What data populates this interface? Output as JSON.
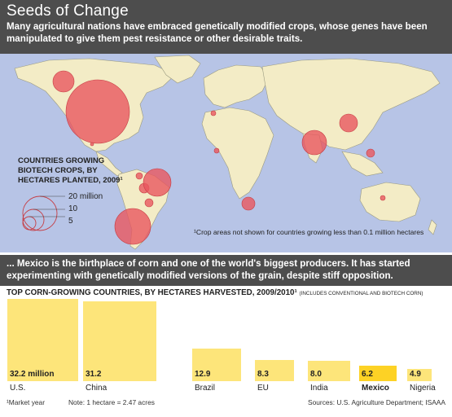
{
  "header": {
    "title": "Seeds of Change",
    "subtitle": "Many agricultural nations have embraced genetically modified crops, whose genes have been manipulated to give them pest resistance or other desirable traits."
  },
  "map": {
    "legend_title_lines": [
      "COUNTRIES GROWING",
      "BIOTECH CROPS, BY",
      "HECTARES PLANTED, 2009¹"
    ],
    "legend_values": [
      "20 million",
      "10",
      "5"
    ],
    "note": "¹Crop areas not shown for countries growing less than 0.1 million hectares",
    "colors": {
      "ocean": "#b7c4e6",
      "land": "#f3ecc6",
      "bubble": "#e8585f"
    }
  },
  "section2": {
    "text": "... Mexico is the birthplace of corn and one of the world's biggest producers. It has started experimenting with genetically modified versions of the grain, despite stiff opposition."
  },
  "chart_data": {
    "type": "bar",
    "title": "TOP CORN-GROWING COUNTRIES, BY HECTARES HARVESTED, 2009/2010¹",
    "subtitle": "(INCLUDES CONVENTIONAL AND BIOTECH CORN)",
    "categories": [
      "U.S.",
      "China",
      "Brazil",
      "EU",
      "India",
      "Mexico",
      "Nigeria"
    ],
    "value_labels": [
      "32.2 million",
      "31.2",
      "12.9",
      "8.3",
      "8.0",
      "6.2",
      "4.9"
    ],
    "values": [
      32.2,
      31.2,
      12.9,
      8.3,
      8.0,
      6.2,
      4.9
    ],
    "highlight": "Mexico",
    "colors": {
      "bar": "#fde57a",
      "highlight": "#fdd225"
    }
  },
  "footer": {
    "market_year": "¹Market year",
    "hectare_note": "Note: 1 hectare = 2.47 acres",
    "sources": "Sources: U.S. Agriculture Department; ISAAA"
  }
}
